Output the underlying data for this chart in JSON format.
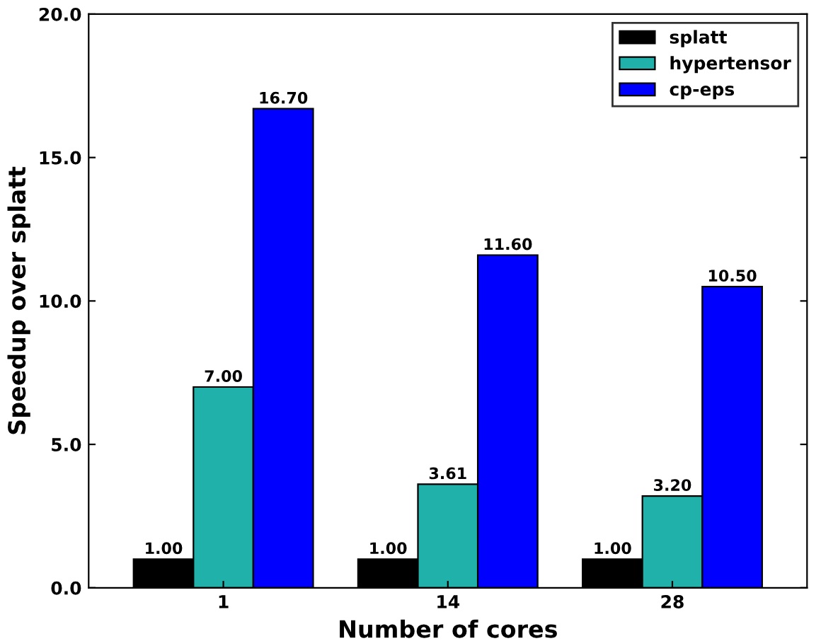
{
  "chart_data": {
    "type": "bar",
    "xlabel": "Number of cores",
    "ylabel": "Speedup over splatt",
    "categories": [
      "1",
      "14",
      "28"
    ],
    "series": [
      {
        "name": "splatt",
        "color": "#000000",
        "values": [
          1.0,
          1.0,
          1.0
        ],
        "value_labels": [
          "1.00",
          "1.00",
          "1.00"
        ]
      },
      {
        "name": "hypertensor",
        "color": "#20b2aa",
        "values": [
          7.0,
          3.61,
          3.2
        ],
        "value_labels": [
          "7.00",
          "3.61",
          "3.20"
        ]
      },
      {
        "name": "cp-eps",
        "color": "#0000ff",
        "values": [
          16.7,
          11.6,
          10.5
        ],
        "value_labels": [
          "16.70",
          "11.60",
          "10.50"
        ]
      }
    ],
    "ylim": [
      0,
      20
    ],
    "yticks": [
      {
        "value": 0,
        "label": "0.0"
      },
      {
        "value": 5,
        "label": "5.0"
      },
      {
        "value": 10,
        "label": "10.0"
      },
      {
        "value": 15,
        "label": "15.0"
      },
      {
        "value": 20,
        "label": "20.0"
      }
    ],
    "grid": false,
    "legend": "top right"
  }
}
